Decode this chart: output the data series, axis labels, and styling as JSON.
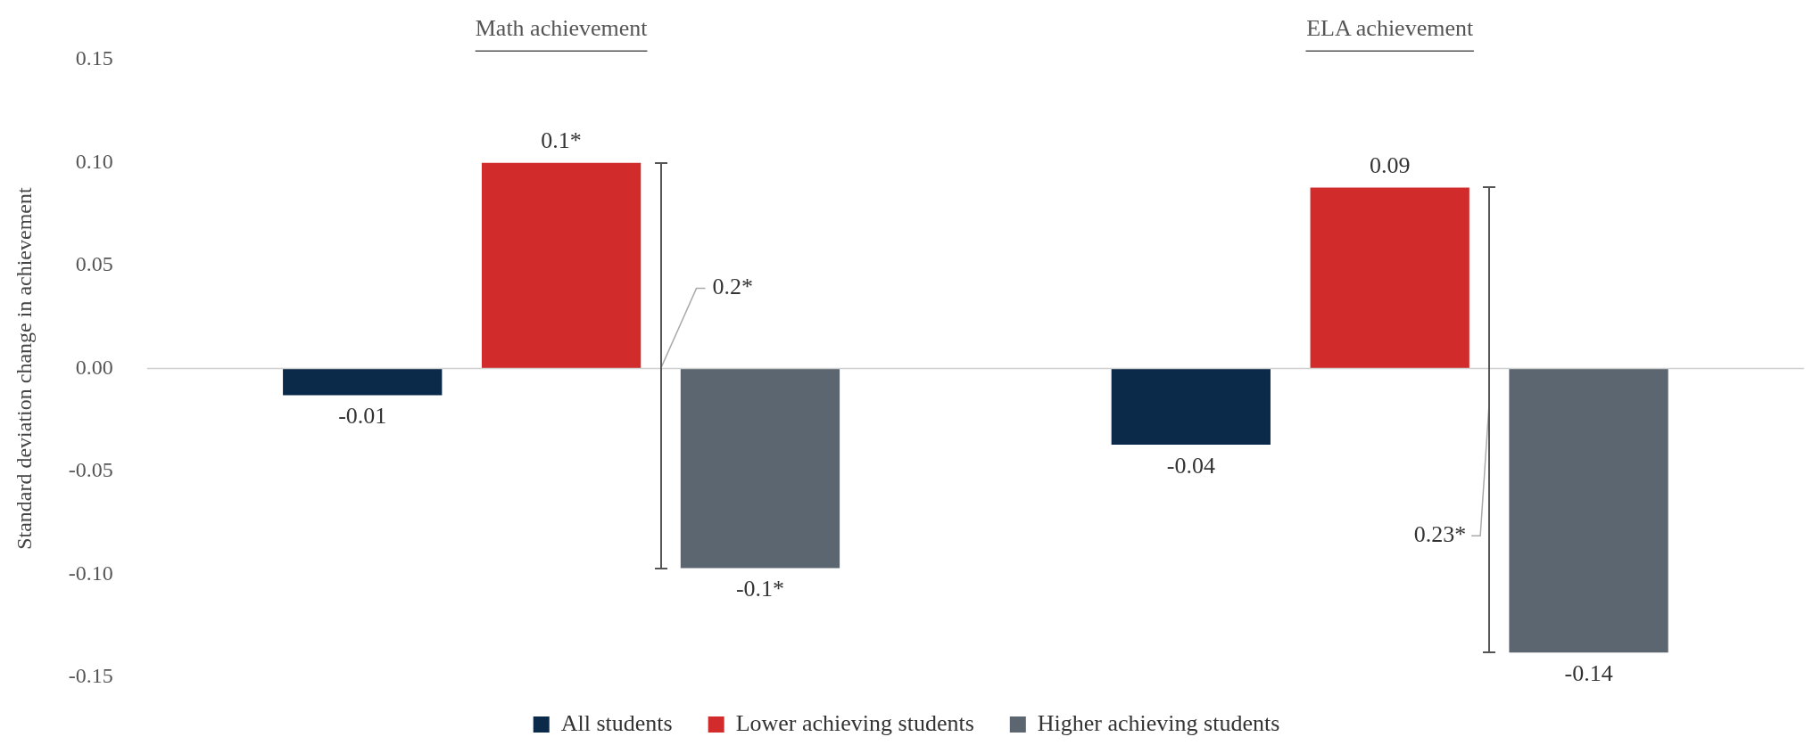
{
  "chart_data": {
    "type": "bar",
    "ylabel": "Standard deviation change in achievement",
    "categories": [
      "Math achievement",
      "ELA achievement"
    ],
    "series": [
      {
        "name": "All students",
        "color": "#0b2a4a",
        "values": [
          -0.013,
          -0.037
        ],
        "value_labels": [
          "-0.01",
          "-0.04"
        ]
      },
      {
        "name": "Lower achieving students",
        "color": "#d22b2b",
        "values": [
          0.1,
          0.088
        ],
        "value_labels": [
          "0.1*",
          "0.09"
        ]
      },
      {
        "name": "Higher achieving students",
        "color": "#5b6670",
        "values": [
          -0.097,
          -0.138
        ],
        "value_labels": [
          "-0.1*",
          "-0.14"
        ]
      }
    ],
    "annotations": [
      {
        "text": "0.2*",
        "y": 0
      },
      "0.23*"
    ],
    "ylim": [
      -0.15,
      0.15
    ],
    "yticks": [
      {
        "value": -0.15,
        "label": "-0.15"
      },
      {
        "value": -0.1,
        "label": "-0.10"
      },
      {
        "value": -0.05,
        "label": "-0.05"
      },
      {
        "value": 0,
        "label": "0.00"
      },
      {
        "value": 0.05,
        "label": "0.05"
      },
      {
        "value": 0.1,
        "label": "0.10"
      },
      {
        "value": 0.15,
        "label": "0.15"
      }
    ],
    "ref_lines": [
      {
        "axis": "y",
        "value": 0,
        "color": "#d0d0d0"
      }
    ],
    "grid": false,
    "legend": "bottom"
  }
}
